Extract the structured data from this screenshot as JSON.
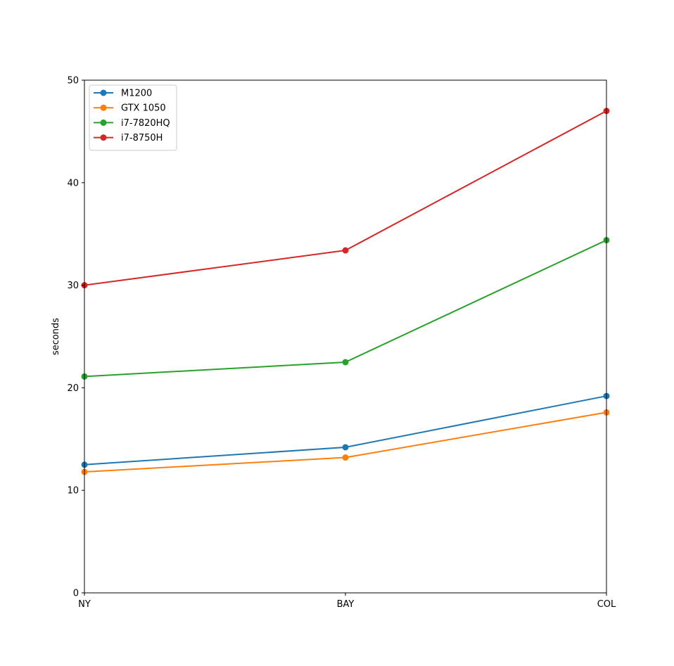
{
  "chart_data": {
    "type": "line",
    "title": "",
    "xlabel": "",
    "ylabel": "seconds",
    "categories": [
      "NY",
      "BAY",
      "COL"
    ],
    "ylim": [
      0,
      50
    ],
    "yticks": [
      0,
      10,
      20,
      30,
      40,
      50
    ],
    "grid": false,
    "legend_position": "top-left",
    "series": [
      {
        "name": "M1200",
        "color": "#1f77b4",
        "values": [
          12.5,
          14.2,
          19.2
        ]
      },
      {
        "name": "GTX 1050",
        "color": "#ff7f0e",
        "values": [
          11.8,
          13.2,
          17.6
        ]
      },
      {
        "name": "i7-7820HQ",
        "color": "#2ca02c",
        "values": [
          21.1,
          22.5,
          34.4
        ]
      },
      {
        "name": "i7-8750H",
        "color": "#d62728",
        "values": [
          30.0,
          33.4,
          47.0
        ]
      }
    ]
  }
}
